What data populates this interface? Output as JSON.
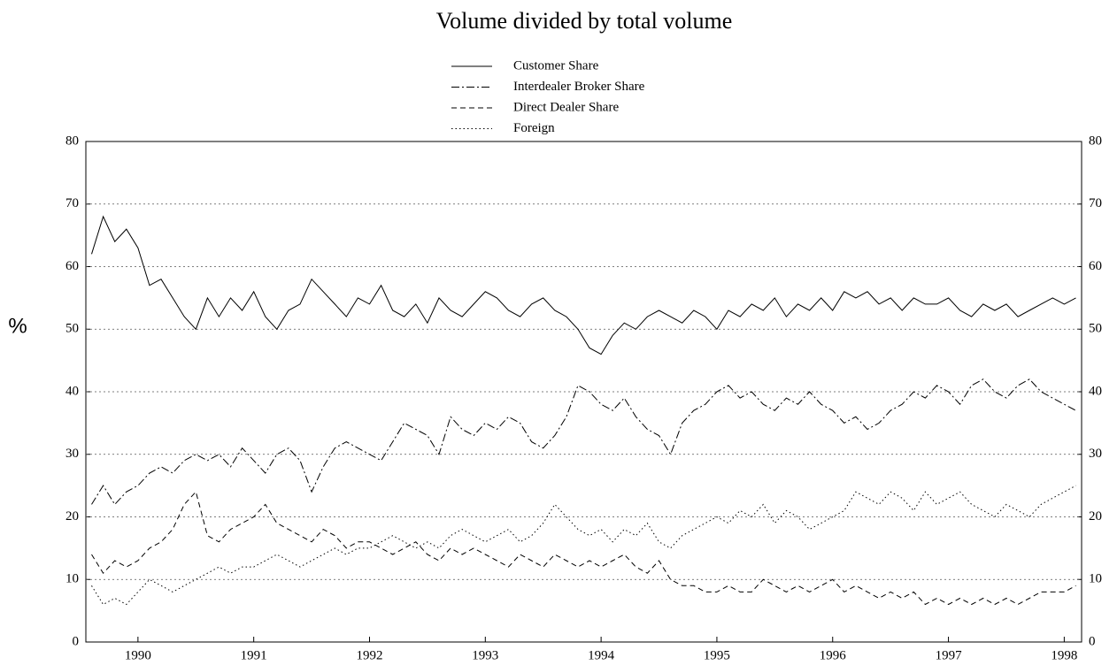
{
  "chart_data": {
    "type": "line",
    "title": "Volume divided by total volume",
    "y_label": "%",
    "xlim": [
      1989.55,
      1998.15
    ],
    "xticks": [
      1990,
      1991,
      1992,
      1993,
      1994,
      1995,
      1996,
      1997,
      1998
    ],
    "ylim": [
      0,
      80
    ],
    "yticks": [
      0,
      10,
      20,
      30,
      40,
      50,
      60,
      70,
      80
    ],
    "grid": true,
    "legend": "top",
    "x": [
      1989.6,
      1989.7,
      1989.8,
      1989.9,
      1990.0,
      1990.1,
      1990.2,
      1990.3,
      1990.4,
      1990.5,
      1990.6,
      1990.7,
      1990.8,
      1990.9,
      1991.0,
      1991.1,
      1991.2,
      1991.3,
      1991.4,
      1991.5,
      1991.6,
      1991.7,
      1991.8,
      1991.9,
      1992.0,
      1992.1,
      1992.2,
      1992.3,
      1992.4,
      1992.5,
      1992.6,
      1992.7,
      1992.8,
      1992.9,
      1993.0,
      1993.1,
      1993.2,
      1993.3,
      1993.4,
      1993.5,
      1993.6,
      1993.7,
      1993.8,
      1993.9,
      1994.0,
      1994.1,
      1994.2,
      1994.3,
      1994.4,
      1994.5,
      1994.6,
      1994.7,
      1994.8,
      1994.9,
      1995.0,
      1995.1,
      1995.2,
      1995.3,
      1995.4,
      1995.5,
      1995.6,
      1995.7,
      1995.8,
      1995.9,
      1996.0,
      1996.1,
      1996.2,
      1996.3,
      1996.4,
      1996.5,
      1996.6,
      1996.7,
      1996.8,
      1996.9,
      1997.0,
      1997.1,
      1997.2,
      1997.3,
      1997.4,
      1997.5,
      1997.6,
      1997.7,
      1997.8,
      1997.9,
      1998.0,
      1998.1
    ],
    "series": [
      {
        "name": "Customer Share",
        "color": "#000000",
        "dash": "solid",
        "values": [
          62,
          68,
          64,
          66,
          63,
          57,
          58,
          55,
          52,
          50,
          55,
          52,
          55,
          53,
          56,
          52,
          50,
          53,
          54,
          58,
          56,
          54,
          52,
          55,
          54,
          57,
          53,
          52,
          54,
          51,
          55,
          53,
          52,
          54,
          56,
          55,
          53,
          52,
          54,
          55,
          53,
          52,
          50,
          47,
          46,
          49,
          51,
          50,
          52,
          53,
          52,
          51,
          53,
          52,
          50,
          53,
          52,
          54,
          53,
          55,
          52,
          54,
          53,
          55,
          53,
          56,
          55,
          56,
          54,
          55,
          53,
          55,
          54,
          54,
          55,
          53,
          52,
          54,
          53,
          54,
          52,
          53,
          54,
          55,
          54,
          55
        ]
      },
      {
        "name": "Interdealer Broker Share",
        "color": "#000000",
        "dash": "dashdot",
        "values": [
          22,
          25,
          22,
          24,
          25,
          27,
          28,
          27,
          29,
          30,
          29,
          30,
          28,
          31,
          29,
          27,
          30,
          31,
          29,
          24,
          28,
          31,
          32,
          31,
          30,
          29,
          32,
          35,
          34,
          33,
          30,
          36,
          34,
          33,
          35,
          34,
          36,
          35,
          32,
          31,
          33,
          36,
          41,
          40,
          38,
          37,
          39,
          36,
          34,
          33,
          30,
          35,
          37,
          38,
          40,
          41,
          39,
          40,
          38,
          37,
          39,
          38,
          40,
          38,
          37,
          35,
          36,
          34,
          35,
          37,
          38,
          40,
          39,
          41,
          40,
          38,
          41,
          42,
          40,
          39,
          41,
          42,
          40,
          39,
          38,
          37
        ]
      },
      {
        "name": "Direct Dealer Share",
        "color": "#000000",
        "dash": "dashed",
        "values": [
          14,
          11,
          13,
          12,
          13,
          15,
          16,
          18,
          22,
          24,
          17,
          16,
          18,
          19,
          20,
          22,
          19,
          18,
          17,
          16,
          18,
          17,
          15,
          16,
          16,
          15,
          14,
          15,
          16,
          14,
          13,
          15,
          14,
          15,
          14,
          13,
          12,
          14,
          13,
          12,
          14,
          13,
          12,
          13,
          12,
          13,
          14,
          12,
          11,
          13,
          10,
          9,
          9,
          8,
          8,
          9,
          8,
          8,
          10,
          9,
          8,
          9,
          8,
          9,
          10,
          8,
          9,
          8,
          7,
          8,
          7,
          8,
          6,
          7,
          6,
          7,
          6,
          7,
          6,
          7,
          6,
          7,
          8,
          8,
          8,
          9
        ]
      },
      {
        "name": "Foreign",
        "color": "#000000",
        "dash": "dotted",
        "values": [
          9,
          6,
          7,
          6,
          8,
          10,
          9,
          8,
          9,
          10,
          11,
          12,
          11,
          12,
          12,
          13,
          14,
          13,
          12,
          13,
          14,
          15,
          14,
          15,
          15,
          16,
          17,
          16,
          15,
          16,
          15,
          17,
          18,
          17,
          16,
          17,
          18,
          16,
          17,
          19,
          22,
          20,
          18,
          17,
          18,
          16,
          18,
          17,
          19,
          16,
          15,
          17,
          18,
          19,
          20,
          19,
          21,
          20,
          22,
          19,
          21,
          20,
          18,
          19,
          20,
          21,
          24,
          23,
          22,
          24,
          23,
          21,
          24,
          22,
          23,
          24,
          22,
          21,
          20,
          22,
          21,
          20,
          22,
          23,
          24,
          25
        ]
      }
    ]
  }
}
